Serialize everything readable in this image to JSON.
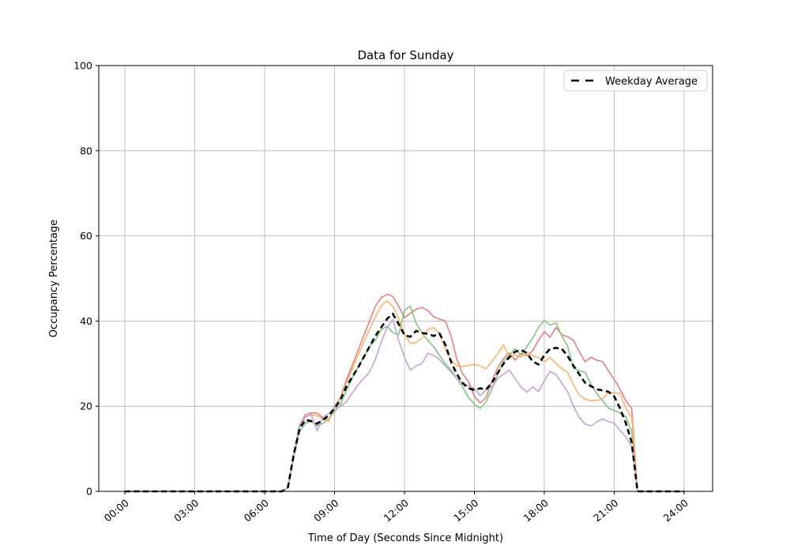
{
  "chart_data": {
    "type": "line",
    "title": "Data for Sunday",
    "xlabel": "Time of Day (Seconds Since Midnight)",
    "ylabel": "Occupancy Percentage",
    "ylim": [
      0,
      100
    ],
    "grid": true,
    "x_unit": "hours",
    "x_start": 0,
    "x_step": 0.25,
    "x_tick_hours": [
      0,
      3,
      6,
      9,
      12,
      15,
      18,
      21,
      24
    ],
    "x_tick_labels": [
      "00:00",
      "03:00",
      "06:00",
      "09:00",
      "12:00",
      "15:00",
      "18:00",
      "21:00",
      "24:00"
    ],
    "y_tick_values": [
      0,
      20,
      40,
      60,
      80,
      100
    ],
    "y_tick_labels": [
      "0",
      "20",
      "40",
      "60",
      "80",
      "100"
    ],
    "legend": {
      "position": "upper right",
      "label": "Weekday Average"
    },
    "colors": {
      "grid": "#b0b0b0",
      "axis": "#000000",
      "background": "#ffffff",
      "average": "#000000",
      "series_red": "#e67d7e",
      "series_green": "#80c680",
      "series_orange": "#ffb26c",
      "series_purple": "#bfa4d7"
    },
    "series": [
      {
        "name": "sunday-series-1",
        "color": "#e67d7e",
        "style": "solid",
        "width": 1.6,
        "values": [
          0,
          0,
          0,
          0,
          0,
          0,
          0,
          0,
          0,
          0,
          0,
          0,
          0,
          0,
          0,
          0,
          0,
          0,
          0,
          0,
          0,
          0,
          0,
          0,
          0,
          0,
          0,
          0,
          1,
          9,
          15.5,
          18,
          18.4,
          18.4,
          17.3,
          16.7,
          20,
          22,
          26,
          29.5,
          33,
          36.5,
          40,
          43.5,
          45.5,
          46.3,
          45.8,
          43.5,
          40.8,
          41.8,
          42.8,
          43.2,
          42.5,
          41,
          40.5,
          40,
          36.5,
          31,
          27.5,
          25.8,
          22.3,
          20.8,
          22,
          25.8,
          29,
          31.2,
          32.5,
          30.8,
          32.4,
          31.9,
          33,
          35.5,
          37.5,
          36.2,
          38.5,
          36.8,
          36.3,
          35.5,
          32.8,
          30.4,
          31.5,
          30.8,
          30.5,
          28.3,
          26.3,
          24,
          21.3,
          19.5,
          0,
          0,
          0,
          0,
          0,
          0,
          0,
          0,
          0
        ]
      },
      {
        "name": "sunday-series-2",
        "color": "#80c680",
        "style": "solid",
        "width": 1.6,
        "values": [
          0,
          0,
          0,
          0,
          0,
          0,
          0,
          0,
          0,
          0,
          0,
          0,
          0,
          0,
          0,
          0,
          0,
          0,
          0,
          0,
          0,
          0,
          0,
          0,
          0,
          0,
          0,
          0,
          0.8,
          8,
          14,
          16,
          16.5,
          15.4,
          16,
          17,
          18.7,
          20.5,
          23.5,
          26.5,
          29,
          31.5,
          34,
          35.5,
          38,
          38.8,
          37.3,
          36.8,
          42.5,
          43.5,
          39.5,
          37.2,
          35.5,
          34,
          32,
          30,
          28.5,
          26.5,
          24.5,
          22,
          20.5,
          19.5,
          21,
          24,
          27.5,
          30.5,
          32,
          33.5,
          32,
          34,
          36,
          38.5,
          40.2,
          39,
          39.6,
          36.5,
          34.1,
          29,
          28.3,
          28,
          25.2,
          23,
          21.3,
          19.6,
          19,
          18.4,
          17.5,
          14,
          0,
          0,
          0,
          0,
          0,
          0,
          0,
          0,
          0
        ]
      },
      {
        "name": "sunday-series-3",
        "color": "#ffb26c",
        "style": "solid",
        "width": 1.6,
        "values": [
          0,
          0,
          0,
          0,
          0,
          0,
          0,
          0,
          0,
          0,
          0,
          0,
          0,
          0,
          0,
          0,
          0,
          0,
          0,
          0,
          0,
          0,
          0,
          0,
          0,
          0,
          0,
          0,
          1,
          8.5,
          15,
          17.5,
          18,
          17.8,
          17,
          16.5,
          19.8,
          21.8,
          25.3,
          28.6,
          31.8,
          35,
          38,
          41,
          43.5,
          44.8,
          43.4,
          40.6,
          37.1,
          34.7,
          35,
          36,
          38,
          38.5,
          37,
          33.5,
          30.8,
          29.5,
          29.3,
          29.6,
          29.8,
          29.4,
          28.8,
          30.5,
          32.3,
          34.4,
          31.5,
          32.1,
          31.5,
          32.5,
          31.8,
          31.4,
          30.5,
          31.4,
          30,
          28.8,
          28,
          25,
          22.6,
          21.7,
          21.3,
          21.4,
          21.7,
          23.2,
          23.2,
          23,
          19.5,
          17.4,
          0,
          0,
          0,
          0,
          0,
          0,
          0,
          0,
          0
        ]
      },
      {
        "name": "sunday-series-4",
        "color": "#bfa4d7",
        "style": "solid",
        "width": 1.6,
        "values": [
          0,
          0,
          0,
          0,
          0,
          0,
          0,
          0,
          0,
          0,
          0,
          0,
          0,
          0,
          0,
          0,
          0,
          0,
          0,
          0,
          0,
          0,
          0,
          0,
          0,
          0,
          0,
          0,
          0.8,
          8.8,
          15,
          17.6,
          18,
          14.2,
          17.4,
          18.3,
          19.5,
          20,
          21,
          23,
          25,
          26.5,
          28,
          31,
          35,
          38.5,
          40.3,
          35.5,
          31.5,
          28.5,
          29.5,
          30,
          32.4,
          32,
          31,
          29.5,
          28,
          26.5,
          25.5,
          24.7,
          24.2,
          22.5,
          23.8,
          24.5,
          26.5,
          27.5,
          28.5,
          26.5,
          24.5,
          23.3,
          24.6,
          23.4,
          26,
          28.2,
          27.4,
          25.4,
          23.4,
          20,
          17.4,
          15.8,
          15.4,
          16.3,
          17,
          16.4,
          16,
          14.3,
          12.8,
          10.5,
          0,
          0,
          0,
          0,
          0,
          0,
          0,
          0,
          0
        ]
      },
      {
        "name": "Weekday Average",
        "color": "#000000",
        "style": "dashed",
        "width": 2.6,
        "values": [
          0,
          0,
          0,
          0,
          0,
          0,
          0,
          0,
          0,
          0,
          0,
          0,
          0,
          0,
          0,
          0,
          0,
          0,
          0,
          0,
          0,
          0,
          0,
          0,
          0,
          0,
          0,
          0,
          1,
          8.7,
          14.8,
          16.8,
          16.5,
          15.9,
          16.8,
          17.8,
          19.5,
          21.5,
          24.5,
          26.8,
          29,
          31.5,
          34,
          36.5,
          38.5,
          40.5,
          41.7,
          39.3,
          36.7,
          36.3,
          37.7,
          37.2,
          37,
          36.5,
          37.1,
          34.5,
          30.4,
          27.5,
          25.4,
          24.2,
          23.8,
          24.2,
          23.9,
          25.5,
          27.8,
          30,
          31.5,
          32.8,
          33.2,
          32.5,
          30.5,
          29.8,
          32,
          33.5,
          33.7,
          33.5,
          31.8,
          29.5,
          27.5,
          25.5,
          24.7,
          24,
          23.7,
          23.4,
          22.3,
          19.5,
          16,
          11.5,
          0,
          0,
          0,
          0,
          0,
          0,
          0,
          0,
          0
        ]
      }
    ]
  }
}
